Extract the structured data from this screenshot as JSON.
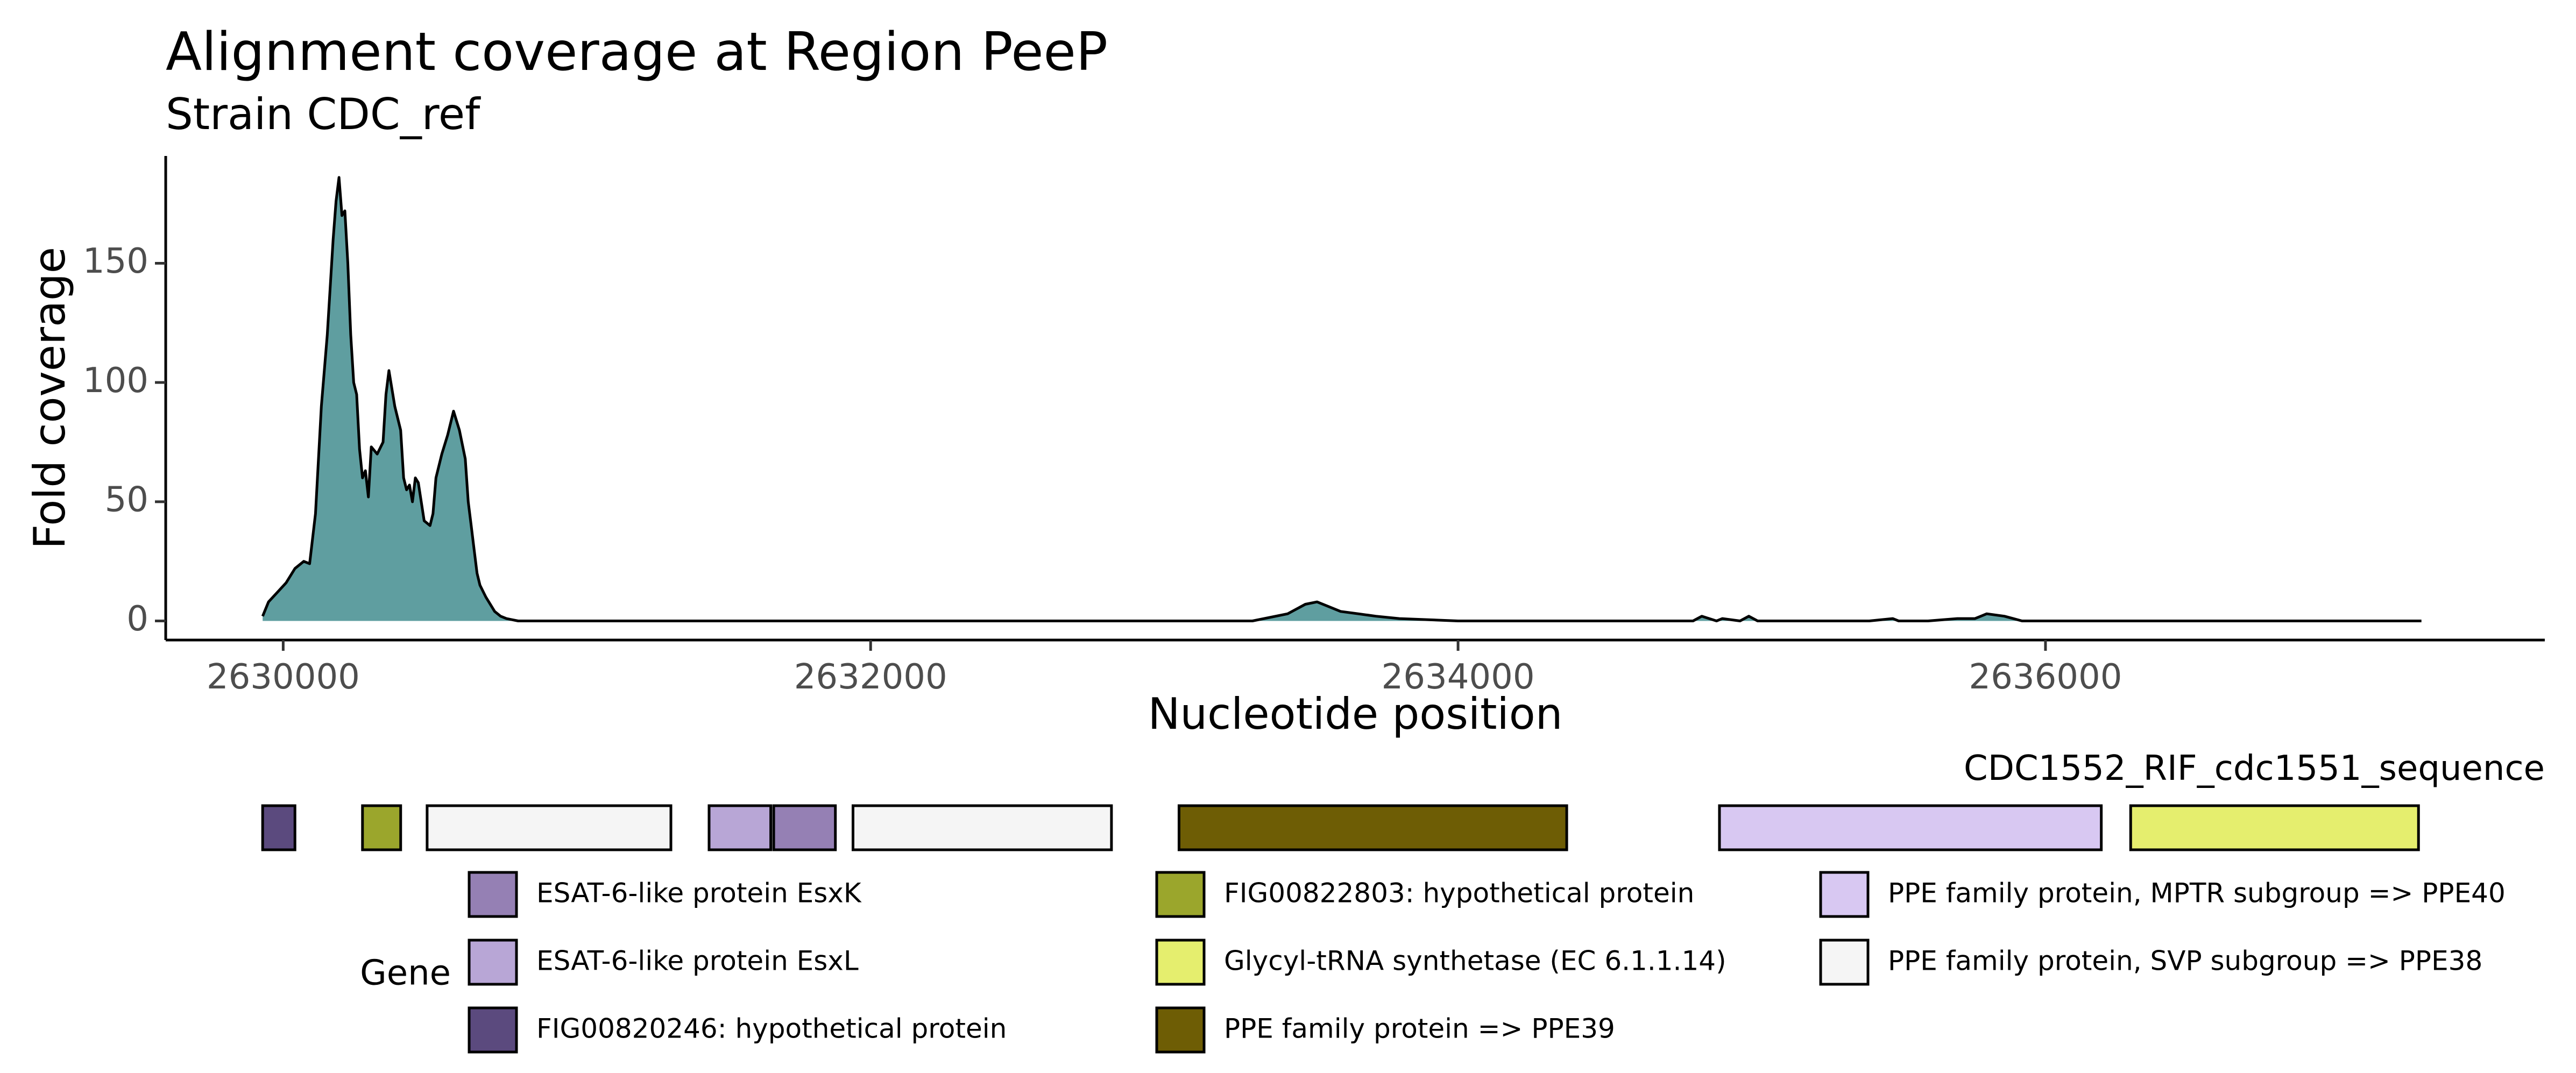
{
  "chart_data": {
    "type": "area",
    "title": "Alignment coverage at Region PeeP",
    "subtitle": "Strain CDC_ref",
    "xlabel": "Nucleotide position",
    "ylabel": "Fold coverage",
    "xlim": [
      2629600,
      2637700
    ],
    "ylim": [
      -8,
      195
    ],
    "x_ticks": [
      2630000,
      2632000,
      2634000,
      2636000
    ],
    "x_tick_labels": [
      "2630000",
      "2632000",
      "2634000",
      "2636000"
    ],
    "y_ticks": [
      0,
      50,
      100,
      150
    ],
    "y_tick_labels": [
      "0",
      "50",
      "100",
      "150"
    ],
    "grid": false,
    "fill_color": "#5f9ea0",
    "line_color": "#000000",
    "series": [
      {
        "x": [
          2629930,
          2629950,
          2629980,
          2630010,
          2630040,
          2630070,
          2630090,
          2630110,
          2630130,
          2630150,
          2630170,
          2630180,
          2630190,
          2630200,
          2630210,
          2630220,
          2630230,
          2630240,
          2630250,
          2630260,
          2630270,
          2630280,
          2630290,
          2630300,
          2630320,
          2630340,
          2630350,
          2630360,
          2630380,
          2630400,
          2630410,
          2630420,
          2630430,
          2630440,
          2630450,
          2630460,
          2630480,
          2630500,
          2630510,
          2630520,
          2630540,
          2630560,
          2630580,
          2630600,
          2630620,
          2630630,
          2630640,
          2630650,
          2630660,
          2630670,
          2630690,
          2630710,
          2630720,
          2630740,
          2630760,
          2630780,
          2630800,
          2630830,
          2630860,
          2630900,
          2630950,
          2631500,
          2632500,
          2633300,
          2633420,
          2633480,
          2633520,
          2633560,
          2633600,
          2633660,
          2633720,
          2633800,
          2634000,
          2634500,
          2634800,
          2634830,
          2634880,
          2634900,
          2634960,
          2634990,
          2635020,
          2635050,
          2635100,
          2635400,
          2635480,
          2635500,
          2635600,
          2635700,
          2635760,
          2635780,
          2635800,
          2635860,
          2635890,
          2635920,
          2636000,
          2636500,
          2637000,
          2637280
        ],
        "y": [
          2,
          8,
          12,
          16,
          22,
          25,
          24,
          45,
          90,
          120,
          160,
          176,
          186,
          170,
          172,
          150,
          120,
          100,
          95,
          72,
          60,
          63,
          52,
          73,
          70,
          75,
          95,
          105,
          90,
          80,
          60,
          55,
          57,
          50,
          60,
          58,
          42,
          40,
          45,
          60,
          70,
          78,
          88,
          80,
          68,
          50,
          40,
          30,
          20,
          15,
          10,
          6,
          4,
          2,
          1,
          0.5,
          0,
          0,
          0,
          0,
          0,
          0,
          0,
          0,
          3,
          7,
          8,
          6,
          4,
          3,
          2,
          1,
          0,
          0,
          0,
          2,
          0,
          1,
          0,
          2,
          0,
          0,
          0,
          0,
          1,
          0,
          0,
          1,
          1,
          2,
          3,
          2,
          1,
          0,
          0,
          0,
          0,
          0
        ]
      }
    ]
  },
  "gene_track": {
    "strip_label": "CDC1552_RIF_cdc1551_sequence",
    "genes": [
      {
        "name": "FIG00820246: hypothetical protein",
        "start": 2629930,
        "end": 2630040,
        "color": "#5b4a7e"
      },
      {
        "name": "FIG00822803: hypothetical protein",
        "start": 2630270,
        "end": 2630400,
        "color": "#9ba62c"
      },
      {
        "name": "PPE family protein, SVP subgroup => PPE38",
        "start": 2630490,
        "end": 2631320,
        "color": "#f5f5f5"
      },
      {
        "name": "ESAT-6-like protein EsxL",
        "start": 2631450,
        "end": 2631660,
        "color": "#b8a6d6"
      },
      {
        "name": "ESAT-6-like protein EsxK",
        "start": 2631670,
        "end": 2631880,
        "color": "#9580b4"
      },
      {
        "name": "PPE family protein, SVP subgroup => PPE38",
        "start": 2631940,
        "end": 2632820,
        "color": "#f5f5f5"
      },
      {
        "name": "PPE family protein => PPE39",
        "start": 2633050,
        "end": 2634370,
        "color": "#6e5d05"
      },
      {
        "name": "PPE family protein, MPTR subgroup => PPE40",
        "start": 2634890,
        "end": 2636190,
        "color": "#d8c8f2"
      },
      {
        "name": "Glycyl-tRNA synthetase (EC 6.1.1.14)",
        "start": 2636290,
        "end": 2637270,
        "color": "#e5ee6e"
      }
    ]
  },
  "legend": {
    "title": "Gene",
    "items": [
      {
        "label": "ESAT-6-like protein EsxK",
        "color": "#9580b4"
      },
      {
        "label": "ESAT-6-like protein EsxL",
        "color": "#b8a6d6"
      },
      {
        "label": "FIG00820246: hypothetical protein",
        "color": "#5b4a7e"
      },
      {
        "label": "FIG00822803: hypothetical protein",
        "color": "#9ba62c"
      },
      {
        "label": "Glycyl-tRNA synthetase (EC 6.1.1.14)",
        "color": "#e5ee6e"
      },
      {
        "label": "PPE family protein => PPE39",
        "color": "#6e5d05"
      },
      {
        "label": "PPE family protein, MPTR subgroup => PPE40",
        "color": "#d8c8f2"
      },
      {
        "label": "PPE family protein, SVP subgroup => PPE38",
        "color": "#f5f5f5"
      }
    ]
  }
}
